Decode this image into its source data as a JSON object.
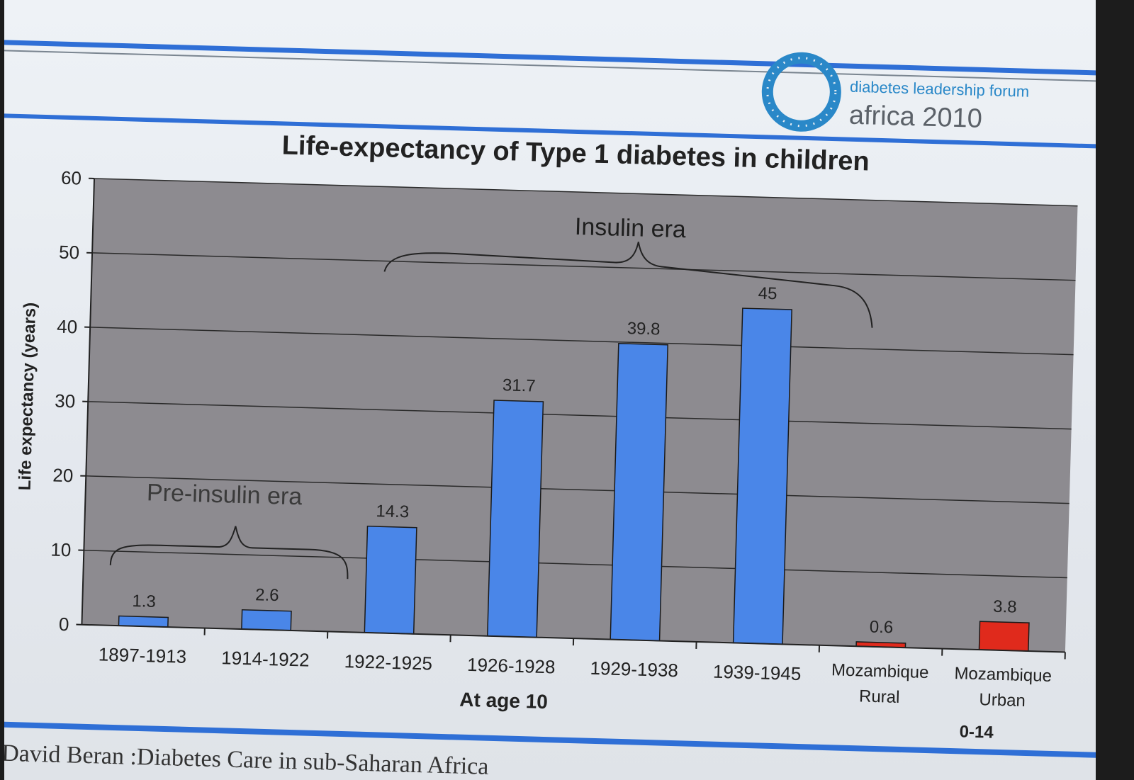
{
  "logo": {
    "line1": "diabetes leadership forum",
    "line2": "africa 2010"
  },
  "chart_data": {
    "type": "bar",
    "title": "Life-expectancy of Type 1 diabetes in children",
    "ylabel": "Life expectancy (years)",
    "xlabel": "At age 10",
    "ylim": [
      0,
      60
    ],
    "yticks": [
      0,
      10,
      20,
      30,
      40,
      50,
      60
    ],
    "grid": true,
    "categories": [
      "1897-1913",
      "1914-1922",
      "1922-1925",
      "1926-1928",
      "1929-1938",
      "1939-1945",
      "Mozambique Rural",
      "Mozambique Urban"
    ],
    "values": [
      1.3,
      2.6,
      14.3,
      31.7,
      39.8,
      45,
      0.6,
      3.8
    ],
    "data_labels": [
      "1.3",
      "2.6",
      "14.3",
      "31.7",
      "39.8",
      "45",
      "0.6",
      "3.8"
    ],
    "bar_colors": [
      "#4a86e8",
      "#4a86e8",
      "#4a86e8",
      "#4a86e8",
      "#4a86e8",
      "#4a86e8",
      "#e02a1c",
      "#e02a1c"
    ],
    "annotations": {
      "pre_insulin": "Pre-insulin era",
      "insulin": "Insulin era",
      "age_group": "0-14"
    },
    "colors": {
      "plot_bg": "#8d8b90",
      "grid": "#2a2a2a",
      "bar_blue": "#4a86e8",
      "bar_red": "#e02a1c"
    }
  },
  "footer": {
    "text": "David Beran :Diabetes Care in sub-Saharan Africa"
  }
}
